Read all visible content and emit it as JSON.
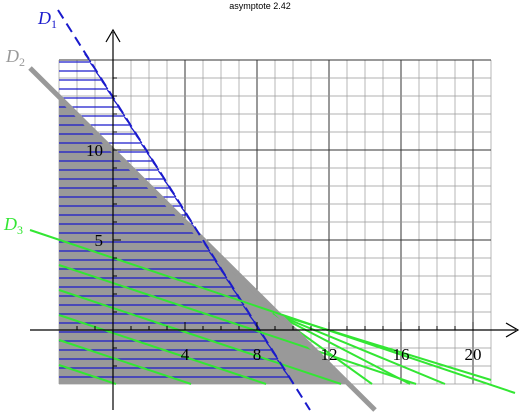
{
  "header": {
    "title": "asymptote 2.42"
  },
  "lines": [
    {
      "letter": "D",
      "index": "1"
    },
    {
      "letter": "D",
      "index": "2"
    },
    {
      "letter": "D",
      "index": "3"
    }
  ],
  "axes": {
    "x_labels": [
      "4",
      "8",
      "12",
      "16",
      "20"
    ],
    "y_labels": [
      "5",
      "10"
    ]
  }
}
